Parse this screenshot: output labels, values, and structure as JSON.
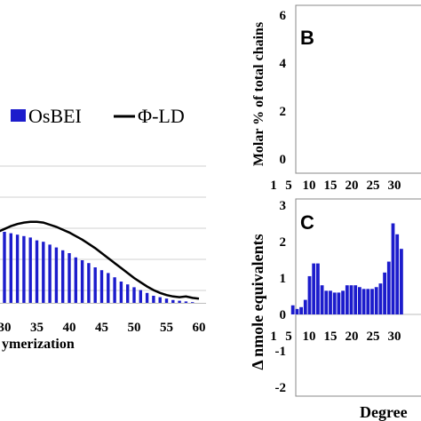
{
  "chart_data": [
    {
      "id": "A",
      "type": "bar",
      "xlabel": "ymerization",
      "x_ticks": [
        "30",
        "35",
        "40",
        "45",
        "50",
        "55",
        "60"
      ],
      "legend": [
        "OsBEI",
        "Φ-LD"
      ],
      "legend_position": "top",
      "grid": "horizontal",
      "colors": {
        "bars": "#1c1ccc",
        "line": "#000000"
      },
      "series": [
        {
          "name": "OsBEI",
          "type": "bar",
          "x": [
            28,
            29,
            30,
            31,
            32,
            33,
            34,
            35,
            36,
            37,
            38,
            39,
            40,
            41,
            42,
            43,
            44,
            45,
            46,
            47,
            48,
            49,
            50,
            51,
            52,
            53,
            54,
            55,
            56,
            57,
            58,
            59,
            60
          ],
          "values": [
            5.2,
            5.1,
            5.0,
            4.9,
            4.8,
            4.7,
            4.6,
            4.4,
            4.3,
            4.1,
            3.9,
            3.7,
            3.5,
            3.2,
            3.0,
            2.8,
            2.5,
            2.3,
            2.1,
            1.8,
            1.5,
            1.3,
            1.1,
            0.9,
            0.7,
            0.5,
            0.4,
            0.3,
            0.2,
            0.15,
            0.1,
            0.05,
            0.0
          ]
        },
        {
          "name": "Φ-LD",
          "type": "line",
          "x": [
            28,
            29,
            30,
            31,
            32,
            33,
            34,
            35,
            36,
            37,
            38,
            39,
            40,
            41,
            42,
            43,
            44,
            45,
            46,
            47,
            48,
            49,
            50,
            51,
            52,
            53,
            54,
            55,
            56,
            57,
            58,
            59,
            60
          ],
          "values": [
            4.8,
            5.0,
            5.2,
            5.4,
            5.55,
            5.65,
            5.7,
            5.7,
            5.65,
            5.5,
            5.35,
            5.15,
            4.95,
            4.7,
            4.45,
            4.15,
            3.85,
            3.5,
            3.15,
            2.8,
            2.45,
            2.1,
            1.75,
            1.45,
            1.15,
            0.9,
            0.7,
            0.55,
            0.45,
            0.4,
            0.45,
            0.35,
            0.3
          ]
        }
      ]
    },
    {
      "id": "B",
      "type": "bar",
      "panel_label": "B",
      "ylabel": "Molar % of total chains",
      "y_ticks": [
        "0",
        "2",
        "4",
        "6"
      ],
      "ylim": [
        0,
        6
      ],
      "x_ticks": [
        "1",
        "5",
        "10",
        "15",
        "20",
        "25",
        "30"
      ],
      "values": []
    },
    {
      "id": "C",
      "type": "bar",
      "panel_label": "C",
      "ylabel": "Δ nmole equivalents",
      "xlabel": "Degree",
      "y_ticks": [
        "3",
        "2",
        "1",
        "0",
        "-1",
        "-2"
      ],
      "ylim": [
        -2,
        3
      ],
      "x_ticks": [
        "1",
        "5",
        "10",
        "15",
        "20",
        "25",
        "30"
      ],
      "colors": {
        "bars": "#1c1ccc"
      },
      "x": [
        6,
        7,
        8,
        9,
        10,
        11,
        12,
        13,
        14,
        15,
        16,
        17,
        18,
        19,
        20,
        21,
        22,
        23,
        24,
        25,
        26,
        27,
        28,
        29,
        30,
        31,
        32
      ],
      "values": [
        0.25,
        0.15,
        0.2,
        0.4,
        1.05,
        1.4,
        1.4,
        0.8,
        0.65,
        0.65,
        0.6,
        0.6,
        0.65,
        0.8,
        0.8,
        0.8,
        0.75,
        0.7,
        0.7,
        0.7,
        0.75,
        0.85,
        1.15,
        1.45,
        2.5,
        2.2,
        1.8
      ]
    }
  ]
}
